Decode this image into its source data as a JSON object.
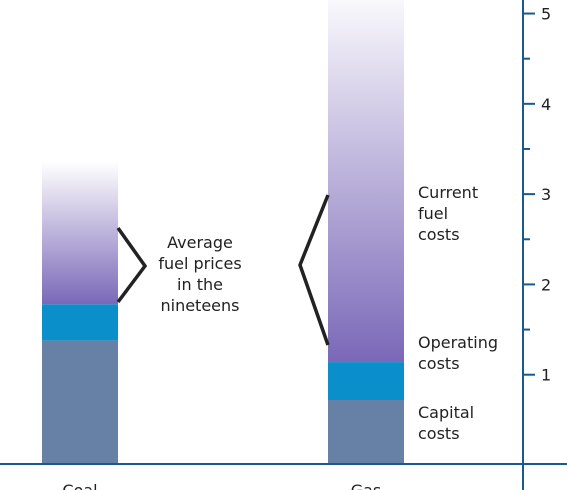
{
  "chart_data": {
    "type": "stacked_bar",
    "categories": [
      "Coal",
      "Gas"
    ],
    "series": [
      {
        "name": "Capital costs",
        "color": "#6680a6",
        "values": [
          1.38,
          0.72
        ]
      },
      {
        "name": "Operating costs",
        "color": "#0a8fcb",
        "values": [
          0.4,
          0.42
        ]
      },
      {
        "name": "Current fuel costs",
        "color": "#7a68b8",
        "values": [
          1.58,
          4.2
        ]
      }
    ],
    "annotation": "Average fuel prices in the nineteens",
    "ylim": [
      0,
      5.15
    ],
    "yticks": [
      1,
      2,
      3,
      4,
      5
    ],
    "yminorticks": [
      1.5,
      2.5,
      3.5,
      4.5
    ],
    "axis_side": "right"
  }
}
